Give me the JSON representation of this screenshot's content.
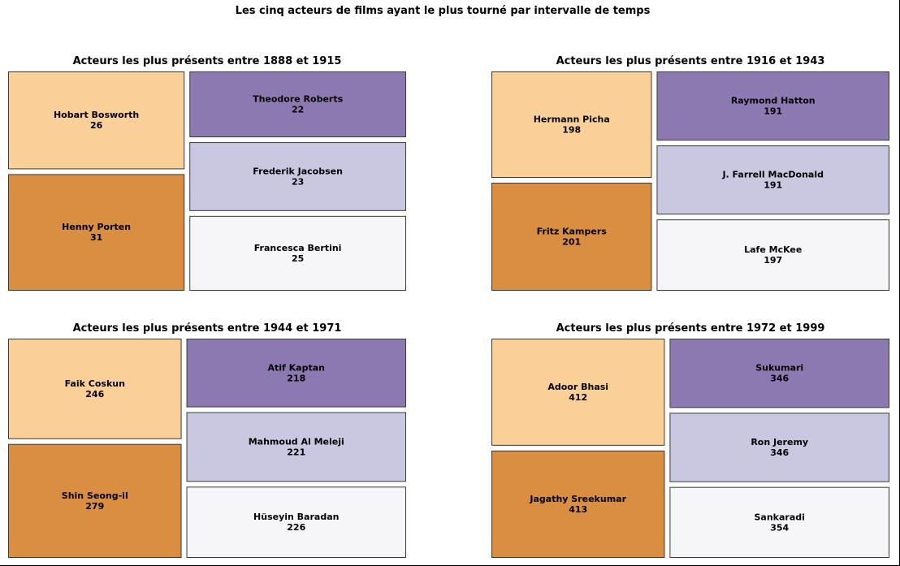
{
  "title": "Les cinq acteurs de films ayant le plus tourné par intervalle de temps",
  "colors": {
    "rank1": "#d98e41",
    "rank2": "#fbcf98",
    "rank3": "#f6f6f8",
    "rank4": "#cac7e0",
    "rank5": "#8c79b2"
  },
  "chart_data": [
    {
      "type": "treemap",
      "title": "Acteurs les plus présents entre 1888 et 1915",
      "items": [
        {
          "name": "Henny Porten",
          "value": 31
        },
        {
          "name": "Hobart Bosworth",
          "value": 26
        },
        {
          "name": "Francesca Bertini",
          "value": 25
        },
        {
          "name": "Frederik Jacobsen",
          "value": 23
        },
        {
          "name": "Theodore Roberts",
          "value": 22
        }
      ]
    },
    {
      "type": "treemap",
      "title": "Acteurs les plus présents entre 1916 et 1943",
      "items": [
        {
          "name": "Fritz Kampers",
          "value": 201
        },
        {
          "name": "Hermann Picha",
          "value": 198
        },
        {
          "name": "Lafe McKee",
          "value": 197
        },
        {
          "name": "J. Farrell MacDonald",
          "value": 191
        },
        {
          "name": "Raymond Hatton",
          "value": 191
        }
      ]
    },
    {
      "type": "treemap",
      "title": "Acteurs les plus présents entre 1944 et 1971",
      "items": [
        {
          "name": "Shin Seong-il",
          "value": 279
        },
        {
          "name": "Faik Coskun",
          "value": 246
        },
        {
          "name": "Hüseyin Baradan",
          "value": 226
        },
        {
          "name": "Mahmoud Al Meleji",
          "value": 221
        },
        {
          "name": "Atif Kaptan",
          "value": 218
        }
      ]
    },
    {
      "type": "treemap",
      "title": "Acteurs les plus présents entre 1972 et 1999",
      "items": [
        {
          "name": "Jagathy Sreekumar",
          "value": 413
        },
        {
          "name": "Adoor Bhasi",
          "value": 412
        },
        {
          "name": "Sankaradi",
          "value": 354
        },
        {
          "name": "Ron Jeremy",
          "value": 346
        },
        {
          "name": "Sukumari",
          "value": 346
        }
      ]
    }
  ]
}
